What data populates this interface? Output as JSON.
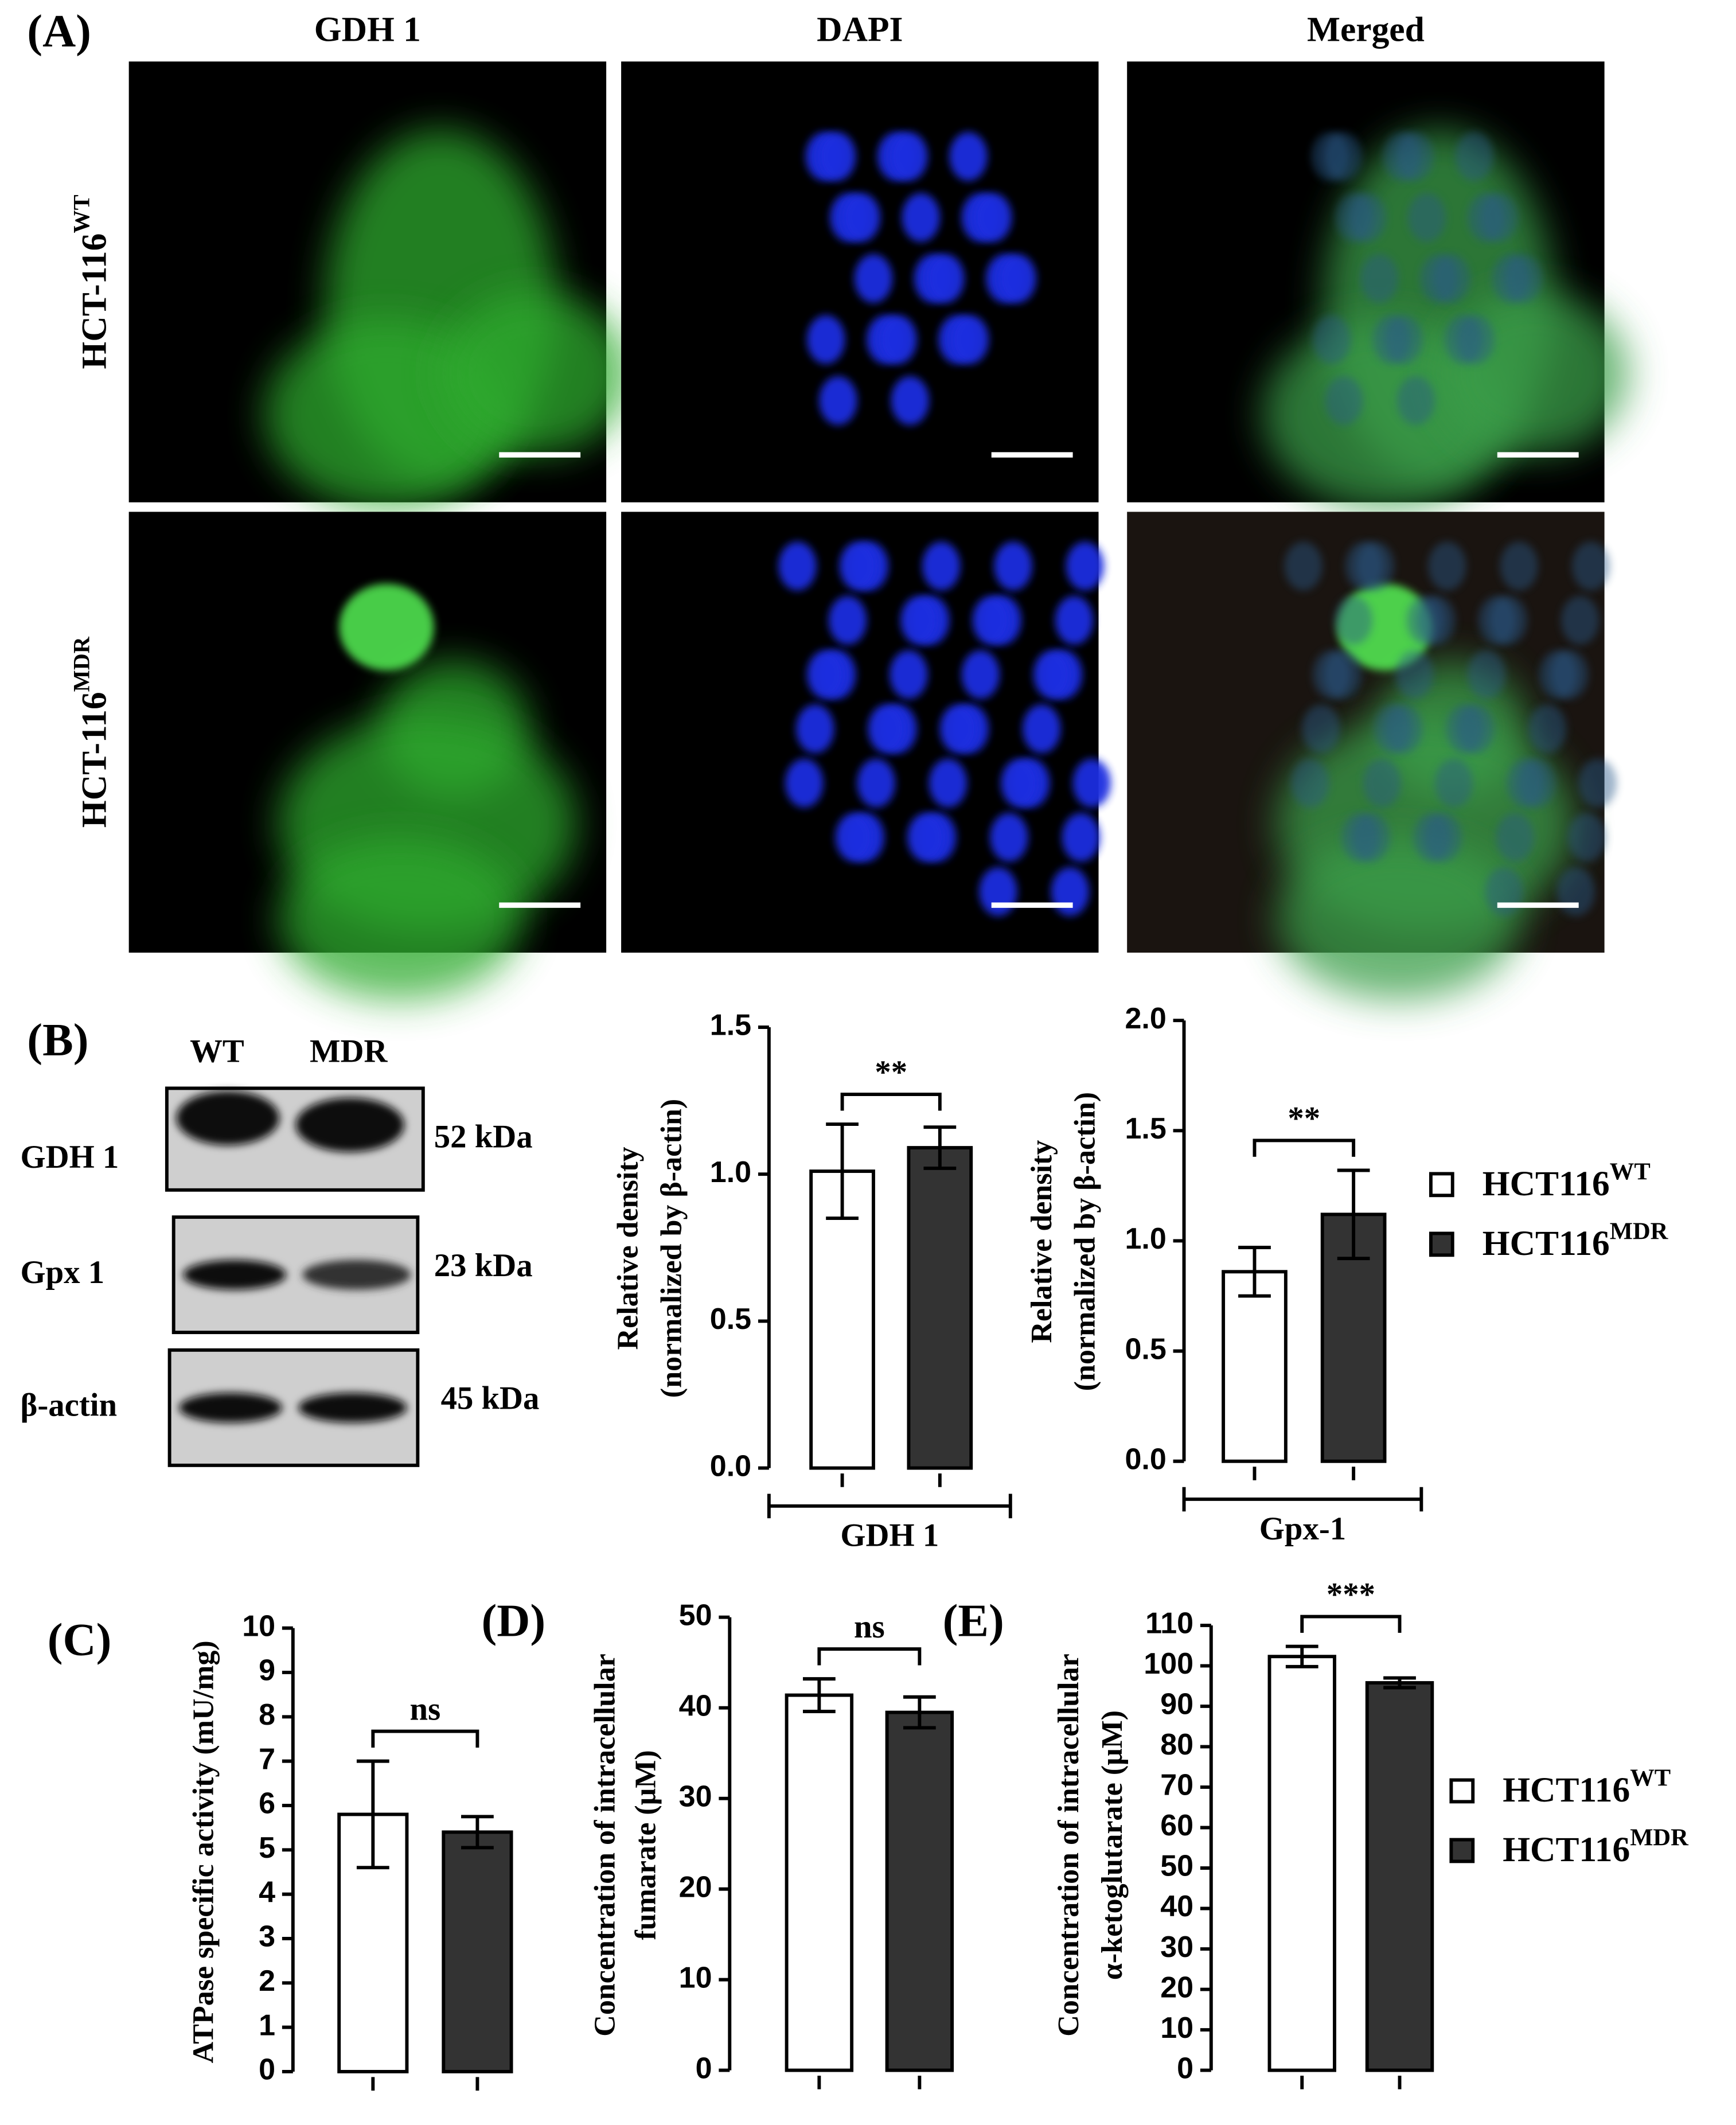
{
  "microscopy": {
    "panel_label": "(A)",
    "columns": [
      "GDH 1",
      "DAPI",
      "Merged"
    ],
    "rows": [
      {
        "label": "HCT-116",
        "superscript": "WT"
      },
      {
        "label": "HCT-116",
        "superscript": "MDR"
      }
    ]
  },
  "western_blot": {
    "panel_label": "(B)",
    "lanes": [
      "WT",
      "MDR"
    ],
    "proteins": [
      {
        "name": "GDH 1",
        "size": "52 kDa"
      },
      {
        "name": "Gpx 1",
        "size": "23 kDa"
      },
      {
        "name": "β-actin",
        "size": "45 kDa"
      }
    ]
  },
  "chart_data": [
    {
      "type": "bar",
      "ylabel": [
        "Relative density",
        "(normalized by β-actin)"
      ],
      "categories": [
        "GDH 1"
      ],
      "series": [
        {
          "color": "#ffffff",
          "values": [
            1.01
          ],
          "errors": [
            0.16
          ]
        },
        {
          "color": "#333333",
          "values": [
            1.09
          ],
          "errors": [
            0.07
          ]
        }
      ],
      "ylim": [
        0,
        1.5
      ],
      "yticks": [
        {
          "value": 0,
          "label": "0.0"
        },
        0.5,
        {
          "value": 1,
          "label": "1.0"
        },
        1.5
      ],
      "annotations": [
        "**"
      ]
    },
    {
      "type": "bar",
      "ylabel": [
        "Relative density",
        "(normalized by β-actin)"
      ],
      "categories": [
        "Gpx-1"
      ],
      "series": [
        {
          "name": "HCT116",
          "name_superscript": "WT",
          "color": "#ffffff",
          "values": [
            0.86
          ],
          "errors": [
            0.11
          ]
        },
        {
          "name": "HCT116",
          "name_superscript": "MDR",
          "color": "#333333",
          "values": [
            1.12
          ],
          "errors": [
            0.2
          ]
        }
      ],
      "ylim": [
        0,
        2
      ],
      "yticks": [
        {
          "value": 0,
          "label": "0.0"
        },
        0.5,
        {
          "value": 1,
          "label": "1.0"
        },
        1.5,
        {
          "value": 2,
          "label": "2.0"
        }
      ],
      "annotations": [
        "**"
      ],
      "legend": "right"
    },
    {
      "type": "bar",
      "panel_label": "(C)",
      "ylabel": [
        "ATPase specific activity (mU/mg)"
      ],
      "categories": [
        null
      ],
      "series": [
        {
          "color": "#ffffff",
          "values": [
            5.8
          ],
          "errors": [
            1.2
          ]
        },
        {
          "color": "#333333",
          "values": [
            5.4
          ],
          "errors": [
            0.35
          ]
        }
      ],
      "ylim": [
        0,
        10
      ],
      "yticks": [
        0,
        1,
        2,
        3,
        4,
        5,
        6,
        7,
        8,
        9,
        10
      ],
      "annotations": [
        "ns"
      ]
    },
    {
      "type": "bar",
      "panel_label": "(D)",
      "ylabel": [
        "Concentration of intracellular",
        "fumarate (μM)"
      ],
      "categories": [
        null
      ],
      "series": [
        {
          "color": "#ffffff",
          "values": [
            41.4
          ],
          "errors": [
            1.8
          ]
        },
        {
          "color": "#333333",
          "values": [
            39.5
          ],
          "errors": [
            1.7
          ]
        }
      ],
      "ylim": [
        0,
        50
      ],
      "yticks": [
        0,
        10,
        20,
        30,
        40,
        50
      ],
      "annotations": [
        "ns"
      ]
    },
    {
      "type": "bar",
      "panel_label": "(E)",
      "ylabel": [
        "Concentration of intracellular",
        "α-ketoglutarate (μM)"
      ],
      "categories": [
        null
      ],
      "series": [
        {
          "name": "HCT116",
          "name_superscript": "WT",
          "color": "#ffffff",
          "values": [
            102.3
          ],
          "errors": [
            2.5
          ]
        },
        {
          "name": "HCT116",
          "name_superscript": "MDR",
          "color": "#333333",
          "values": [
            95.8
          ],
          "errors": [
            1.2
          ]
        }
      ],
      "ylim": [
        0,
        110
      ],
      "yticks": [
        0,
        10,
        20,
        30,
        40,
        50,
        60,
        70,
        80,
        90,
        100,
        110
      ],
      "annotations": [
        "***"
      ],
      "legend": "right"
    }
  ]
}
